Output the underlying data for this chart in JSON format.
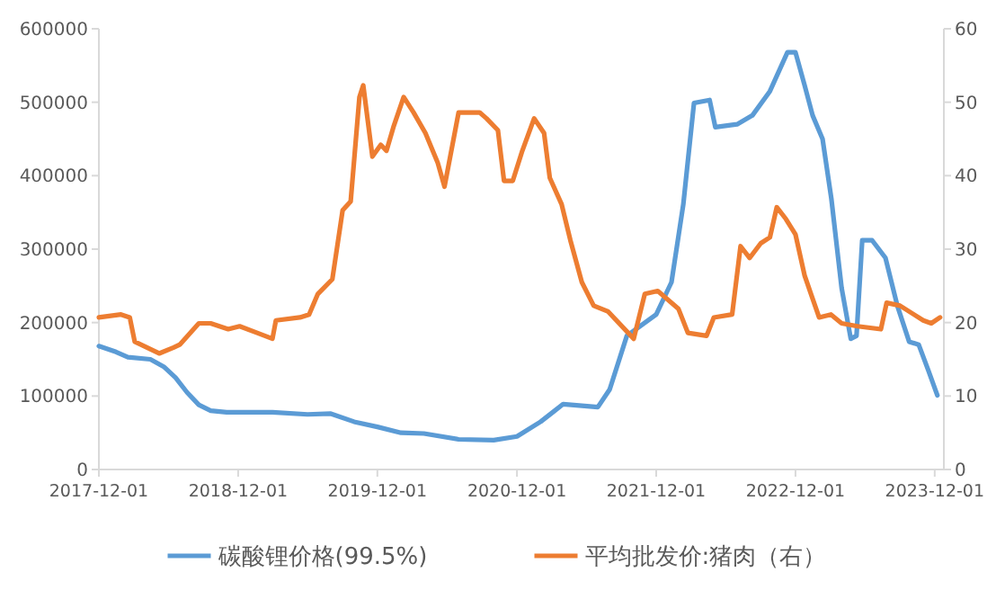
{
  "chart_data": {
    "type": "line",
    "legend": "bottom",
    "grid": false,
    "marker": "none",
    "line_style": "solid",
    "xlim": [
      "2017-12-01",
      "2023-12-25"
    ],
    "xticks": [
      "2017-12-01",
      "2018-12-01",
      "2019-12-01",
      "2020-12-01",
      "2021-12-01",
      "2022-12-01",
      "2023-12-01"
    ],
    "ylim": [
      0,
      600000
    ],
    "yticks": [
      0,
      100000,
      200000,
      300000,
      400000,
      500000,
      600000
    ],
    "y2lim": [
      0,
      60
    ],
    "y2ticks": [
      0,
      10,
      20,
      30,
      40,
      50,
      60
    ],
    "series": [
      {
        "name": "碳酸锂价格(99.5%)",
        "color": "#5b9bd5",
        "x": [
          "2017-12-01",
          "2018-01-15",
          "2018-02-15",
          "2018-04-15",
          "2018-05-20",
          "2018-06-20",
          "2018-07-20",
          "2018-08-20",
          "2018-09-20",
          "2018-11-01",
          "2019-03-01",
          "2019-06-01",
          "2019-08-01",
          "2019-10-01",
          "2019-12-01",
          "2020-02-01",
          "2020-04-01",
          "2020-07-01",
          "2020-10-01",
          "2020-12-01",
          "2021-02-01",
          "2021-03-10",
          "2021-04-01",
          "2021-07-01",
          "2021-08-01",
          "2021-09-15",
          "2021-12-01",
          "2022-01-10",
          "2022-02-10",
          "2022-03-10",
          "2022-04-20",
          "2022-05-05",
          "2022-07-01",
          "2022-08-10",
          "2022-09-25",
          "2022-11-10",
          "2022-12-01",
          "2022-12-25",
          "2023-01-15",
          "2023-02-10",
          "2023-03-05",
          "2023-04-01",
          "2023-04-25",
          "2023-05-10",
          "2023-05-25",
          "2023-06-20",
          "2023-07-25",
          "2023-08-25",
          "2023-09-25",
          "2023-10-20",
          "2023-11-15",
          "2023-12-08"
        ],
        "values": [
          168000,
          160000,
          153000,
          150000,
          140000,
          125000,
          105000,
          88000,
          80000,
          78000,
          78000,
          75000,
          76000,
          65000,
          58000,
          50000,
          49000,
          41000,
          40000,
          45000,
          65000,
          80000,
          89000,
          85000,
          109000,
          182000,
          211000,
          255000,
          361000,
          499000,
          503000,
          466000,
          470000,
          482000,
          515000,
          568000,
          568000,
          523000,
          482000,
          450000,
          369000,
          247000,
          178000,
          182000,
          312000,
          312000,
          288000,
          223000,
          174000,
          170000,
          134000,
          101000
        ]
      },
      {
        "name": "平均批发价:猪肉（右）",
        "color": "#ed7d31",
        "axis": "y2",
        "x": [
          "2017-12-01",
          "2018-01-28",
          "2018-02-20",
          "2018-03-05",
          "2018-05-08",
          "2018-06-15",
          "2018-07-01",
          "2018-08-20",
          "2018-09-20",
          "2018-11-05",
          "2018-12-05",
          "2019-01-20",
          "2019-03-01",
          "2019-03-10",
          "2019-05-12",
          "2019-06-05",
          "2019-06-28",
          "2019-08-05",
          "2019-09-01",
          "2019-09-22",
          "2019-10-15",
          "2019-10-25",
          "2019-11-18",
          "2019-12-10",
          "2019-12-25",
          "2020-01-12",
          "2020-02-08",
          "2020-03-05",
          "2020-04-05",
          "2020-05-07",
          "2020-05-25",
          "2020-07-01",
          "2020-08-25",
          "2020-09-12",
          "2020-10-12",
          "2020-10-28",
          "2020-11-20",
          "2020-12-15",
          "2021-01-15",
          "2021-02-10",
          "2021-02-25",
          "2021-03-28",
          "2021-04-20",
          "2021-05-20",
          "2021-06-20",
          "2021-07-28",
          "2021-10-03",
          "2021-11-01",
          "2021-12-05",
          "2022-01-28",
          "2022-02-22",
          "2022-04-12",
          "2022-05-01",
          "2022-06-18",
          "2022-07-10",
          "2022-08-03",
          "2022-09-01",
          "2022-09-25",
          "2022-10-13",
          "2022-11-06",
          "2022-12-01",
          "2022-12-25",
          "2023-01-16",
          "2023-02-01",
          "2023-03-04",
          "2023-04-01",
          "2023-05-13",
          "2023-07-13",
          "2023-07-28",
          "2023-09-01",
          "2023-11-01",
          "2023-11-22",
          "2023-12-15"
        ],
        "values": [
          20.7,
          21.1,
          20.7,
          17.4,
          15.8,
          16.6,
          17.0,
          19.9,
          19.9,
          19.1,
          19.5,
          18.6,
          17.8,
          20.3,
          20.7,
          21.1,
          23.9,
          25.9,
          35.3,
          36.5,
          50.7,
          52.3,
          42.6,
          44.2,
          43.4,
          46.6,
          50.7,
          48.6,
          45.8,
          41.8,
          38.5,
          48.6,
          48.6,
          47.8,
          46.2,
          39.3,
          39.3,
          43.4,
          47.8,
          45.8,
          39.7,
          36.1,
          31.2,
          25.5,
          22.3,
          21.5,
          17.8,
          23.9,
          24.3,
          21.9,
          18.6,
          18.2,
          20.7,
          21.1,
          30.4,
          28.8,
          30.8,
          31.6,
          35.7,
          34.1,
          32.0,
          26.4,
          23.1,
          20.7,
          21.1,
          19.9,
          19.5,
          19.1,
          22.7,
          22.3,
          20.3,
          19.9,
          20.7
        ]
      }
    ]
  }
}
